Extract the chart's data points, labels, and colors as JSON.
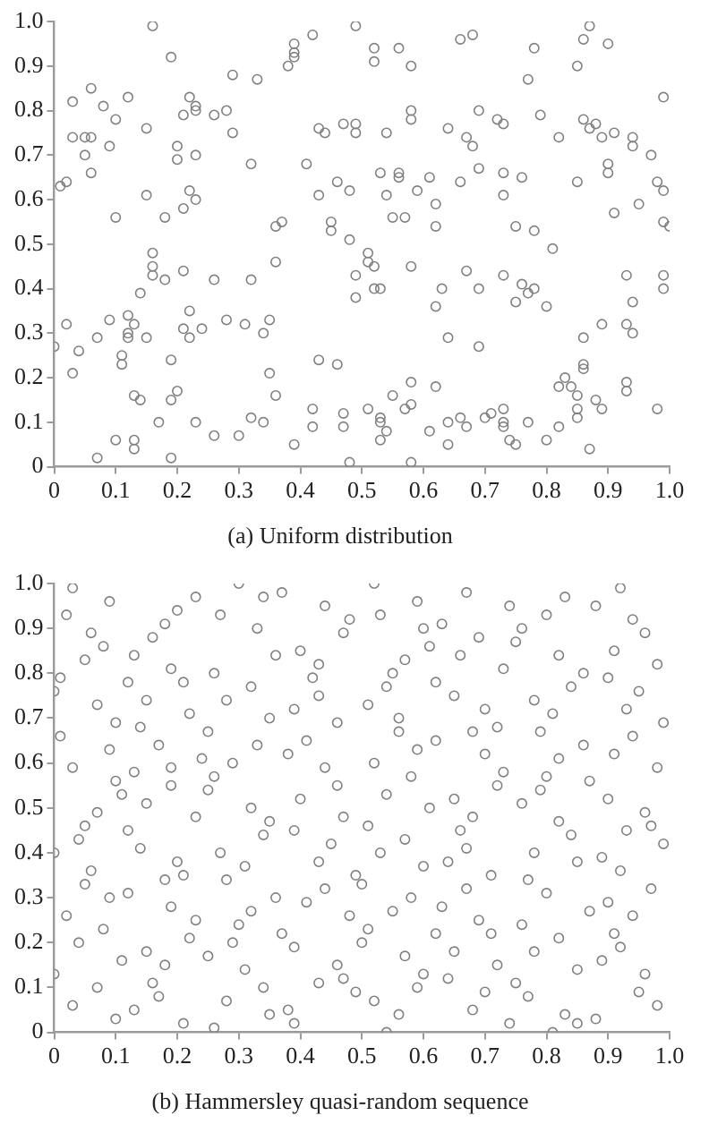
{
  "chart_data": [
    {
      "type": "scatter",
      "title": "(a) Uniform distribution",
      "color": "#808080",
      "marker": "circle",
      "grid": false,
      "legend": false,
      "xlim": [
        0,
        1
      ],
      "ylim": [
        0,
        1
      ],
      "xticks": [
        0,
        0.1,
        0.2,
        0.3,
        0.4,
        0.5,
        0.6,
        0.7,
        0.8,
        0.9,
        {
          "value": 1,
          "label": "1.0"
        }
      ],
      "yticks": [
        0,
        0.1,
        0.2,
        0.3,
        0.4,
        0.5,
        0.6,
        0.7,
        0.8,
        0.9,
        {
          "value": 1,
          "label": "1.0"
        }
      ],
      "x": [
        0,
        0.02,
        0.03,
        0.04,
        0.07,
        0.07,
        0.09,
        0.1,
        0.11,
        0.11,
        0.12,
        0.12,
        0.12,
        0.13,
        0.13,
        0.13,
        0.13,
        0.14,
        0.14,
        0.15,
        0.16,
        0.16,
        0.16,
        0.17,
        0.18,
        0.19,
        0.19,
        0.19,
        0.2,
        0.21,
        0.21,
        0.22,
        0.22,
        0.23,
        0.24,
        0.26,
        0.26,
        0.28,
        0.3,
        0.31,
        0.32,
        0.32,
        0.34,
        0.34,
        0.35,
        0.35,
        0.36,
        0.36,
        0.39,
        0.42,
        0.42,
        0.43,
        0.46,
        0.47,
        0.47,
        0.48,
        0.48,
        0.51,
        0.51,
        0.52,
        0.49,
        0.52,
        0.53,
        0.49,
        0.58,
        0.62,
        0.63,
        0.67,
        0.69,
        0.73,
        0.76,
        0.77,
        0.75,
        0.78,
        0.8,
        0.81,
        0.64,
        0.69,
        0.86,
        0.89,
        0.93,
        0.93,
        0.94,
        0.94,
        0.99,
        0.99,
        0.58,
        0.55,
        0.62,
        0.58,
        0.57,
        0.51,
        0.53,
        0.53,
        0.54,
        0.53,
        0.61,
        0.64,
        0.66,
        0.67,
        0.64,
        0.7,
        0.71,
        0.73,
        0.73,
        0.73,
        0.74,
        0.75,
        0.77,
        0.8,
        0.82,
        0.82,
        0.83,
        0.84,
        0.85,
        0.85,
        0.85,
        0.86,
        0.86,
        0.88,
        0.89,
        0.87,
        0.93,
        0.93,
        0.98,
        0.58,
        0.01,
        0.02,
        0.03,
        0.03,
        0.05,
        0.06,
        0.05,
        0.06,
        0.06,
        0.08,
        0.09,
        0.1,
        0.1,
        0.12,
        0.15,
        0.15,
        0.16,
        0.18,
        0.19,
        0.2,
        0.2,
        0.21,
        0.21,
        0.22,
        0.22,
        0.23,
        0.23,
        0.23,
        0.23,
        0.26,
        0.28,
        0.29,
        0.29,
        0.32,
        0.33,
        0.36,
        0.37,
        0.38,
        0.39,
        0.39,
        0.39,
        0.41,
        0.42,
        0.43,
        0.43,
        0.44,
        0.45,
        0.45,
        0.46,
        0.47,
        0.48,
        0.49,
        0.52,
        0.56,
        0.52,
        0.58,
        0.66,
        0.68,
        0.77,
        0.78,
        0.85,
        0.86,
        0.87,
        0.9,
        0.49,
        0.49,
        0.54,
        0.58,
        0.58,
        0.64,
        0.67,
        0.68,
        0.69,
        0.72,
        0.73,
        0.79,
        0.82,
        0.86,
        0.88,
        0.87,
        0.89,
        0.91,
        0.94,
        0.94,
        0.97,
        0.99,
        0.53,
        0.56,
        0.56,
        0.61,
        0.69,
        0.73,
        0.76,
        0.66,
        0.59,
        0.54,
        0.73,
        0.9,
        0.9,
        0.85,
        0.98,
        0.99,
        0.62,
        0.55,
        0.57,
        0.62,
        0.75,
        0.78,
        0.91,
        0.95,
        0.99,
        1.0
      ],
      "values": [
        0.27,
        0.32,
        0.21,
        0.26,
        0.02,
        0.29,
        0.33,
        0.06,
        0.25,
        0.23,
        0.3,
        0.34,
        0.29,
        0.04,
        0.06,
        0.32,
        0.16,
        0.15,
        0.39,
        0.29,
        0.45,
        0.43,
        0.48,
        0.1,
        0.42,
        0.15,
        0.02,
        0.24,
        0.17,
        0.31,
        0.44,
        0.29,
        0.35,
        0.1,
        0.31,
        0.07,
        0.42,
        0.33,
        0.07,
        0.32,
        0.42,
        0.11,
        0.3,
        0.1,
        0.21,
        0.33,
        0.46,
        0.16,
        0.05,
        0.13,
        0.09,
        0.24,
        0.23,
        0.12,
        0.09,
        0.01,
        0.51,
        0.48,
        0.46,
        0.45,
        0.43,
        0.4,
        0.4,
        0.38,
        0.45,
        0.36,
        0.4,
        0.44,
        0.4,
        0.43,
        0.41,
        0.39,
        0.37,
        0.4,
        0.36,
        0.49,
        0.29,
        0.27,
        0.29,
        0.32,
        0.43,
        0.32,
        0.3,
        0.37,
        0.43,
        0.4,
        0.19,
        0.16,
        0.18,
        0.14,
        0.13,
        0.13,
        0.11,
        0.1,
        0.08,
        0.06,
        0.08,
        0.1,
        0.11,
        0.09,
        0.05,
        0.11,
        0.12,
        0.13,
        0.1,
        0.09,
        0.06,
        0.05,
        0.1,
        0.06,
        0.09,
        0.18,
        0.2,
        0.18,
        0.16,
        0.13,
        0.11,
        0.23,
        0.22,
        0.15,
        0.13,
        0.04,
        0.19,
        0.17,
        0.13,
        0.01,
        0.63,
        0.64,
        0.82,
        0.74,
        0.74,
        0.85,
        0.7,
        0.74,
        0.66,
        0.81,
        0.72,
        0.78,
        0.56,
        0.83,
        0.76,
        0.61,
        0.99,
        0.56,
        0.92,
        0.72,
        0.69,
        0.79,
        0.58,
        0.62,
        0.83,
        0.81,
        0.8,
        0.7,
        0.6,
        0.79,
        0.8,
        0.75,
        0.88,
        0.68,
        0.87,
        0.54,
        0.55,
        0.9,
        0.95,
        0.93,
        0.92,
        0.68,
        0.97,
        0.61,
        0.76,
        0.75,
        0.55,
        0.53,
        0.64,
        0.77,
        0.62,
        0.99,
        0.94,
        0.94,
        0.91,
        0.9,
        0.96,
        0.97,
        0.87,
        0.94,
        0.9,
        0.96,
        0.99,
        0.95,
        0.77,
        0.75,
        0.75,
        0.8,
        0.78,
        0.76,
        0.74,
        0.72,
        0.8,
        0.78,
        0.77,
        0.79,
        0.74,
        0.78,
        0.77,
        0.76,
        0.74,
        0.75,
        0.72,
        0.74,
        0.7,
        0.83,
        0.66,
        0.66,
        0.65,
        0.65,
        0.67,
        0.66,
        0.65,
        0.64,
        0.62,
        0.61,
        0.61,
        0.68,
        0.66,
        0.64,
        0.64,
        0.62,
        0.59,
        0.56,
        0.56,
        0.54,
        0.54,
        0.53,
        0.57,
        0.59,
        0.55,
        0.54
      ]
    },
    {
      "type": "scatter",
      "title": "(b) Hammersley quasi-random sequence",
      "color": "#808080",
      "marker": "circle",
      "grid": false,
      "legend": false,
      "xlim": [
        0,
        1
      ],
      "ylim": [
        0,
        1
      ],
      "xticks": [
        0,
        0.1,
        0.2,
        0.3,
        0.4,
        0.5,
        0.6,
        0.7,
        0.8,
        0.9,
        {
          "value": 1,
          "label": "1.0"
        }
      ],
      "yticks": [
        0,
        0.1,
        0.2,
        0.3,
        0.4,
        0.5,
        0.6,
        0.7,
        0.8,
        0.9,
        {
          "value": 1,
          "label": "1.0"
        }
      ],
      "x": [
        0,
        0.01,
        0.03,
        0.02,
        0.09,
        0.06,
        0.08,
        0.05,
        0.01,
        0.07,
        0.03,
        0.09,
        0.1,
        0.12,
        0.13,
        0.16,
        0.18,
        0.2,
        0.23,
        0.3,
        0.27,
        0.33,
        0.34,
        0.37,
        0.26,
        0.21,
        0.19,
        0.15,
        0.14,
        0.17,
        0.22,
        0.25,
        0.28,
        0.32,
        0.36,
        0.4,
        0.43,
        0.44,
        0.47,
        0.48,
        0.52,
        0.53,
        0.35,
        0.33,
        0.29,
        0.24,
        0.19,
        0.13,
        0.1,
        0.11,
        0.07,
        0.05,
        0.04,
        0,
        0.06,
        0.05,
        0.09,
        0.02,
        0.04,
        0.08,
        0,
        0.03,
        0.07,
        0.1,
        0.13,
        0.11,
        0.15,
        0.16,
        0.17,
        0.18,
        0.12,
        0.14,
        0.12,
        0.15,
        0.19,
        0.23,
        0.2,
        0.21,
        0.18,
        0.19,
        0.22,
        0.23,
        0.21,
        0.26,
        0.28,
        0.25,
        0.29,
        0.3,
        0.28,
        0.27,
        0.26,
        0.25,
        0.32,
        0.31,
        0.32,
        0.31,
        0.34,
        0.35,
        0.38,
        0.39,
        0.37,
        0.39,
        0.36,
        0.34,
        0.35,
        0.38,
        0.39,
        0.39,
        0.41,
        0.4,
        0.41,
        0.42,
        0.43,
        0.43,
        0.43,
        0.44,
        0.44,
        0.46,
        0.46,
        0.45,
        0.47,
        0.46,
        0.48,
        0.47,
        0.49,
        0.49,
        0.5,
        0.5,
        0.51,
        0.51,
        0.51,
        0.52,
        0.52,
        0.53,
        0.54,
        0.54,
        0.55,
        0.54,
        0.55,
        0.56,
        0.56,
        0.57,
        0.57,
        0.57,
        0.56,
        0.58,
        0.58,
        0.59,
        0.59,
        0.59,
        0.6,
        0.6,
        0.6,
        0.61,
        0.61,
        0.62,
        0.62,
        0.62,
        0.63,
        0.63,
        0.64,
        0.64,
        0.65,
        0.65,
        0.65,
        0.66,
        0.66,
        0.67,
        0.67,
        0.67,
        0.68,
        0.68,
        0.68,
        0.69,
        0.69,
        0.7,
        0.7,
        0.7,
        0.71,
        0.71,
        0.72,
        0.72,
        0.72,
        0.73,
        0.73,
        0.74,
        0.74,
        0.75,
        0.75,
        0.76,
        0.76,
        0.76,
        0.77,
        0.77,
        0.78,
        0.78,
        0.78,
        0.79,
        0.79,
        0.8,
        0.8,
        0.8,
        0.81,
        0.81,
        0.82,
        0.82,
        0.82,
        0.82,
        0.83,
        0.83,
        0.84,
        0.84,
        0.85,
        0.85,
        0.85,
        0.86,
        0.86,
        0.87,
        0.87,
        0.88,
        0.88,
        0.89,
        0.89,
        0.9,
        0.9,
        0.9,
        0.91,
        0.91,
        0.91,
        0.92,
        0.92,
        0.92,
        0.93,
        0.93,
        0.94,
        0.94,
        0.94,
        0.95,
        0.95,
        0.96,
        0.96,
        0.96,
        0.97,
        0.97,
        0.98,
        0.98,
        0.98,
        0.99,
        0.99
      ],
      "values": [
        0.76,
        0.79,
        0.99,
        0.93,
        0.96,
        0.89,
        0.86,
        0.83,
        0.66,
        0.73,
        0.59,
        0.63,
        0.69,
        0.78,
        0.84,
        0.88,
        0.91,
        0.94,
        0.97,
        1.0,
        0.93,
        0.9,
        0.97,
        0.98,
        0.8,
        0.78,
        0.81,
        0.74,
        0.68,
        0.64,
        0.71,
        0.67,
        0.74,
        0.77,
        0.84,
        0.85,
        0.82,
        0.95,
        0.89,
        0.92,
        1.0,
        0.93,
        0.7,
        0.64,
        0.6,
        0.61,
        0.59,
        0.58,
        0.56,
        0.53,
        0.49,
        0.46,
        0.43,
        0.4,
        0.36,
        0.33,
        0.3,
        0.26,
        0.2,
        0.23,
        0.13,
        0.06,
        0.1,
        0.03,
        0.05,
        0.16,
        0.18,
        0.11,
        0.08,
        0.15,
        0.31,
        0.41,
        0.45,
        0.51,
        0.55,
        0.48,
        0.38,
        0.35,
        0.34,
        0.28,
        0.21,
        0.25,
        0.02,
        0.01,
        0.07,
        0.17,
        0.2,
        0.24,
        0.34,
        0.4,
        0.57,
        0.54,
        0.5,
        0.37,
        0.27,
        0.14,
        0.1,
        0.04,
        0.05,
        0.02,
        0.22,
        0.19,
        0.3,
        0.44,
        0.47,
        0.62,
        0.72,
        0.45,
        0.29,
        0.52,
        0.65,
        0.79,
        0.75,
        0.11,
        0.38,
        0.32,
        0.59,
        0.69,
        0.55,
        0.42,
        0.12,
        0.15,
        0.26,
        0.48,
        0.35,
        0.09,
        0.33,
        0.2,
        0.46,
        0.73,
        0.23,
        0.6,
        0.07,
        0.4,
        0.0,
        0.77,
        0.8,
        0.53,
        0.27,
        0.67,
        0.7,
        0.43,
        0.17,
        0.83,
        0.04,
        0.57,
        0.3,
        0.96,
        0.63,
        0.1,
        0.9,
        0.37,
        0.13,
        0.86,
        0.5,
        0.22,
        0.78,
        0.65,
        0.28,
        0.91,
        0.38,
        0.12,
        0.75,
        0.52,
        0.18,
        0.84,
        0.45,
        0.32,
        0.98,
        0.41,
        0.05,
        0.67,
        0.48,
        0.25,
        0.88,
        0.62,
        0.09,
        0.72,
        0.35,
        0.22,
        0.68,
        0.55,
        0.15,
        0.81,
        0.58,
        0.02,
        0.95,
        0.11,
        0.87,
        0.51,
        0.24,
        0.9,
        0.34,
        0.08,
        0.74,
        0.4,
        0.18,
        0.67,
        0.54,
        0.31,
        0.93,
        0.57,
        0.0,
        0.71,
        0.47,
        0.21,
        0.84,
        0.61,
        0.04,
        0.97,
        0.44,
        0.77,
        0.02,
        0.38,
        0.14,
        0.8,
        0.64,
        0.27,
        0.56,
        0.03,
        0.95,
        0.39,
        0.16,
        0.79,
        0.52,
        0.29,
        0.85,
        0.62,
        0.22,
        0.99,
        0.36,
        0.19,
        0.72,
        0.45,
        0.26,
        0.92,
        0.66,
        0.76,
        0.09,
        0.49,
        0.13,
        0.89,
        0.46,
        0.32,
        0.82,
        0.59,
        0.06,
        0.69,
        0.42
      ]
    }
  ]
}
